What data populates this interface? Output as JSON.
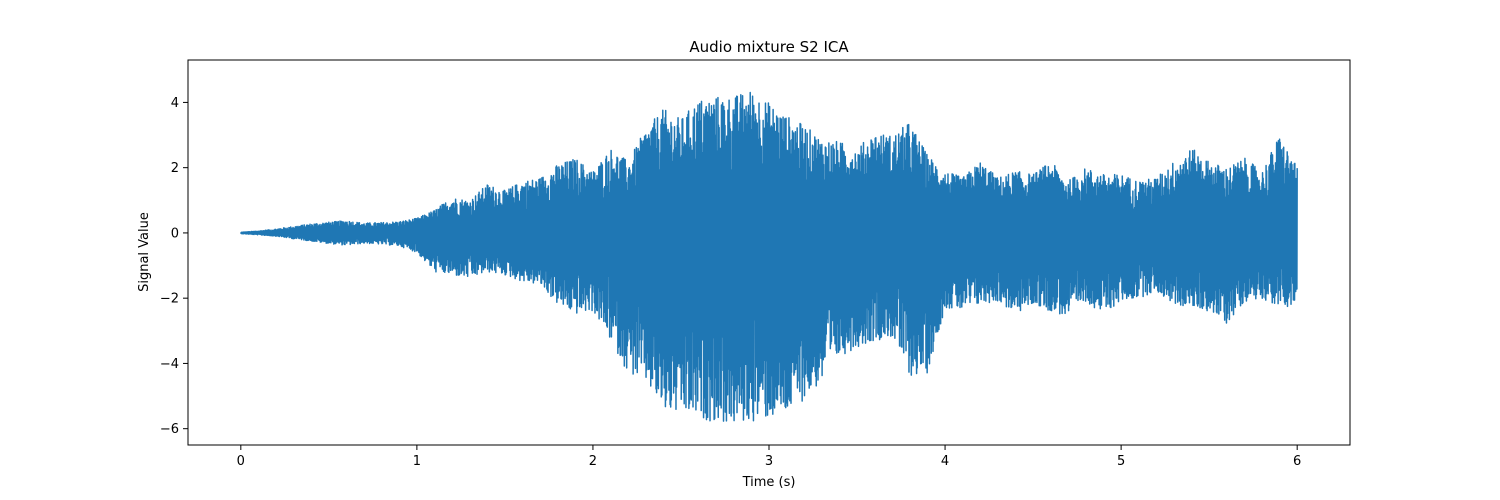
{
  "chart_data": {
    "type": "line",
    "title": "Audio mixture S2 ICA",
    "xlabel": "Time (s)",
    "ylabel": "Signal Value",
    "xlim": [
      -0.3,
      6.3
    ],
    "ylim": [
      -6.5,
      5.3
    ],
    "xticks": [
      0,
      1,
      2,
      3,
      4,
      5,
      6
    ],
    "yticks": [
      -6,
      -4,
      -2,
      0,
      2,
      4
    ],
    "grid": false,
    "legend": "none",
    "series_color": "#1f77b4",
    "series": [
      {
        "x": [
          0,
          0.1,
          0.2,
          0.3,
          0.4,
          0.5,
          0.6,
          0.7,
          0.8,
          0.9,
          1.0,
          1.1,
          1.2,
          1.3,
          1.4,
          1.5,
          1.6,
          1.7,
          1.8,
          1.9,
          2.0,
          2.1,
          2.2,
          2.3,
          2.4,
          2.5,
          2.6,
          2.7,
          2.8,
          2.9,
          3.0,
          3.1,
          3.2,
          3.3,
          3.4,
          3.5,
          3.6,
          3.7,
          3.8,
          3.9,
          4.0,
          4.1,
          4.2,
          4.3,
          4.4,
          4.5,
          4.6,
          4.7,
          4.8,
          4.9,
          5.0,
          5.1,
          5.2,
          5.3,
          5.4,
          5.5,
          5.6,
          5.7,
          5.8,
          5.9,
          6.0
        ],
        "upper": [
          0.02,
          0.06,
          0.12,
          0.2,
          0.28,
          0.33,
          0.38,
          0.3,
          0.32,
          0.35,
          0.45,
          0.7,
          1.1,
          1.0,
          1.5,
          1.3,
          1.6,
          1.7,
          2.1,
          2.3,
          1.9,
          2.6,
          2.2,
          3.2,
          3.8,
          3.5,
          4.1,
          4.2,
          4.2,
          4.4,
          4.0,
          3.6,
          3.3,
          2.9,
          2.8,
          2.6,
          3.1,
          3.0,
          3.4,
          2.4,
          1.9,
          1.7,
          2.2,
          1.7,
          1.9,
          1.8,
          2.2,
          1.6,
          2.0,
          1.8,
          1.8,
          1.6,
          1.7,
          2.2,
          2.6,
          2.2,
          2.0,
          2.3,
          1.9,
          3.0,
          2.0
        ],
        "lower": [
          -0.02,
          -0.06,
          -0.1,
          -0.18,
          -0.25,
          -0.33,
          -0.38,
          -0.32,
          -0.35,
          -0.4,
          -0.6,
          -1.2,
          -1.3,
          -1.4,
          -1.2,
          -1.3,
          -1.5,
          -1.6,
          -2.2,
          -2.5,
          -2.4,
          -3.3,
          -4.3,
          -4.6,
          -5.5,
          -5.6,
          -5.7,
          -5.8,
          -5.9,
          -5.8,
          -5.7,
          -5.6,
          -5.1,
          -4.6,
          -3.8,
          -3.5,
          -3.3,
          -3.2,
          -4.4,
          -4.3,
          -2.3,
          -2.4,
          -2.2,
          -2.1,
          -2.5,
          -2.2,
          -2.4,
          -2.6,
          -2.1,
          -2.5,
          -2.1,
          -2.0,
          -1.8,
          -2.2,
          -2.3,
          -2.4,
          -2.8,
          -2.1,
          -2.0,
          -2.3,
          -2.2
        ]
      }
    ]
  }
}
